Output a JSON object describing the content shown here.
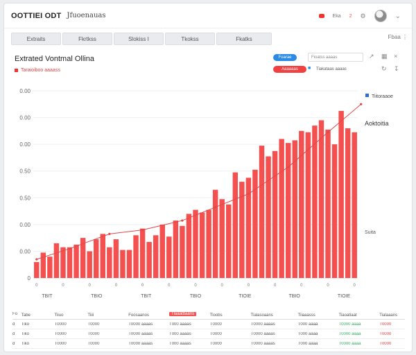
{
  "header": {
    "logo": "OOTTIEI ODT",
    "subtitle": "Jfuoenauas",
    "right_labels": [
      "Eka",
      "2"
    ],
    "colors": {
      "accent_red": "#f04040",
      "accent_blue": "#2b8ae6"
    }
  },
  "tabs": [
    {
      "label": "Extraits"
    },
    {
      "label": "Fkrtkss"
    },
    {
      "label": "Slokiss I"
    },
    {
      "label": "Tkokss"
    },
    {
      "label": "Fkatks"
    }
  ],
  "tabs_right": "Fbaa",
  "panel": {
    "title": "Extrated Vontmal Ollina",
    "subtitle": "Taraioiboo aaaass",
    "controls": {
      "blue_pill": "Foarae",
      "red_pill": "Aaaaaas",
      "field_value": "Fioatss aaaas",
      "filter_text": "Tiakataas aaaas"
    }
  },
  "chart_data": {
    "type": "bar",
    "title": "Extrated Vontmal Ollina",
    "y_ticks": [
      "0",
      "0.00",
      "0.00",
      "0.50",
      "0.50",
      "0.00",
      "0.00",
      "0.00"
    ],
    "ylim": [
      0,
      700
    ],
    "x_tick_labels": [
      "TBIT",
      "TBIO",
      "TBIT",
      "TBIO",
      "TIOIE",
      "TBIO",
      "TIOIE"
    ],
    "bars": [
      60,
      95,
      80,
      130,
      115,
      115,
      125,
      150,
      100,
      145,
      165,
      115,
      145,
      105,
      105,
      160,
      185,
      135,
      160,
      200,
      155,
      215,
      195,
      240,
      255,
      245,
      255,
      330,
      295,
      275,
      395,
      360,
      375,
      405,
      495,
      455,
      475,
      520,
      505,
      515,
      550,
      545,
      570,
      590,
      555,
      500,
      625,
      560,
      545
    ],
    "series": [
      {
        "name": "Tiitoraaoe",
        "type": "line",
        "values": [
          {
            "x": 0,
            "y": 70
          },
          {
            "x": 5,
            "y": 110
          },
          {
            "x": 11,
            "y": 165
          },
          {
            "x": 16,
            "y": 180
          },
          {
            "x": 22,
            "y": 215
          },
          {
            "x": 27,
            "y": 265
          },
          {
            "x": 32,
            "y": 315
          },
          {
            "x": 38,
            "y": 415
          },
          {
            "x": 44,
            "y": 545
          },
          {
            "x": 49,
            "y": 650
          }
        ]
      }
    ],
    "annotations": [
      "Tiitoraaoe",
      "Aoktoitia",
      "Suita"
    ]
  },
  "table": {
    "headers": [
      "Tabe",
      "Tiiuo",
      "Tiiii",
      "Foosaanos",
      "Tlaaatbaans",
      "Tioobs",
      "Tialasoaans",
      "Tiiaaasss",
      "Tiaoatiaat",
      "Tialaaans"
    ],
    "highlight_header_index": 4,
    "rows": [
      [
        "Tiko",
        "T0000",
        "T0000",
        "T0000 aaaas",
        "T000 aaaas",
        "T0000",
        "T0000 aaaas",
        "T000 aaaa",
        "T0000 aaaa",
        "T0000"
      ],
      [
        "Tiko",
        "T0000",
        "T0000",
        "T0000 aaaas",
        "T000 aaaas",
        "T0000",
        "T0000 aaaas",
        "T000 aaaa",
        "T0000 aaaa",
        "T0000"
      ],
      [
        "Tiko",
        "T0000",
        "T0000",
        "T0000 aaaas",
        "T000 aaaas",
        "T0000",
        "T0000 aaaas",
        "T000 aaaa",
        "T0000 aaaa",
        "T0000"
      ]
    ],
    "row_marks": [
      "d",
      "d",
      "d"
    ]
  }
}
